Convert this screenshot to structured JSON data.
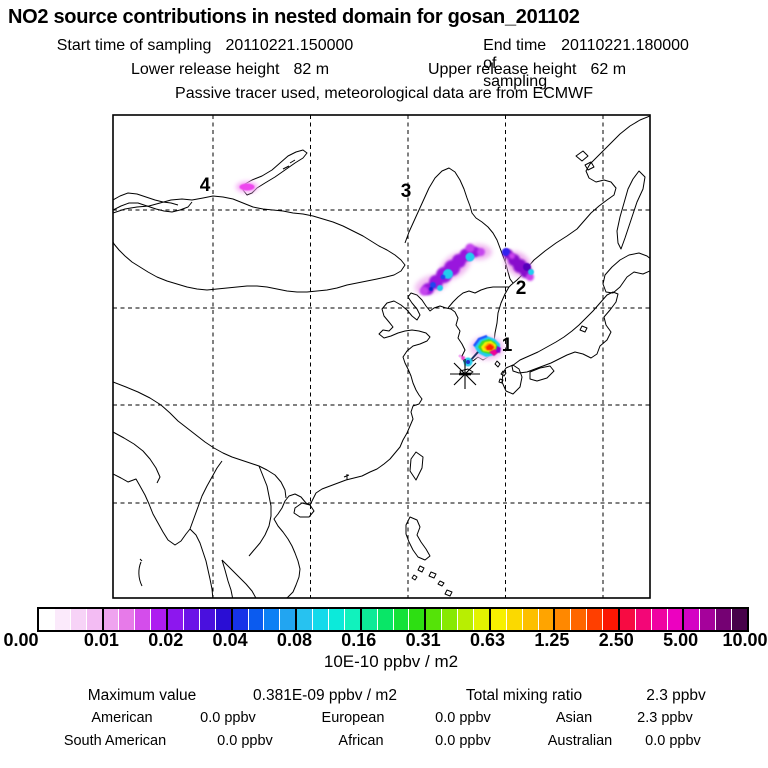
{
  "header": {
    "title": "NO2 source contributions in nested domain for gosan_201102",
    "sampling": {
      "start_label": "Start time of sampling",
      "start_value": "20110221.150000",
      "end_label": "End time of sampling",
      "end_value": "20110221.180000"
    },
    "release": {
      "lower_label": "Lower release height",
      "lower_value": "82 m",
      "upper_label": "Upper release height",
      "upper_value": "62 m"
    },
    "tracer_note": "Passive tracer used, meteorological data are from ECMWF"
  },
  "map": {
    "markers": [
      {
        "label": "1"
      },
      {
        "label": "2"
      },
      {
        "label": "3"
      },
      {
        "label": "4"
      }
    ],
    "receptor_name": "gosan"
  },
  "colorbar": {
    "tick_labels": [
      "0.00",
      "0.01",
      "0.02",
      "0.04",
      "0.08",
      "0.16",
      "0.31",
      "0.63",
      "1.25",
      "2.50",
      "5.00",
      "10.00"
    ],
    "unit": "10E-10 ppbv / m2",
    "cells": [
      "#ffffff",
      "#fbeafb",
      "#f7d3f7",
      "#f3bcf3",
      "#efa3ef",
      "#e77ae9",
      "#d44deb",
      "#ae1cf0",
      "#8d17ee",
      "#6c13e7",
      "#4a10de",
      "#2a0ed4",
      "#1633e8",
      "#0b5bef",
      "#0d80f4",
      "#22a5f1",
      "#27c2f0",
      "#14daeb",
      "#0ceada",
      "#11f2bd",
      "#0dea97",
      "#09e667",
      "#15e238",
      "#2ddf12",
      "#55e308",
      "#87e904",
      "#b8ee02",
      "#e3f300",
      "#f7f000",
      "#fbd900",
      "#fdbf00",
      "#ffa400",
      "#ff8800",
      "#ff6600",
      "#ff3f00",
      "#fb1703",
      "#f70b42",
      "#f30677",
      "#ef03a2",
      "#ec01c0",
      "#d402c4",
      "#a5029b",
      "#750173",
      "#47024a"
    ]
  },
  "stats": {
    "max_label": "Maximum value",
    "max_value": "0.381E-09 ppbv / m2",
    "total_label": "Total mixing ratio",
    "total_value": "2.3 ppbv",
    "contributions": [
      [
        {
          "label": "American",
          "value": "0.0 ppbv"
        },
        {
          "label": "European",
          "value": "0.0 ppbv"
        },
        {
          "label": "Asian",
          "value": "2.3 ppbv"
        }
      ],
      [
        {
          "label": "South American",
          "value": "0.0 ppbv"
        },
        {
          "label": "African",
          "value": "0.0 ppbv"
        },
        {
          "label": "Australian",
          "value": "0.0 ppbv"
        }
      ]
    ]
  },
  "chart_data": {
    "type": "heatmap",
    "subtype": "geographic-dispersion-map",
    "title": "NO2 source contributions in nested domain for gosan_201102",
    "colorbar_levels": [
      0.0,
      0.01,
      0.02,
      0.04,
      0.08,
      0.16,
      0.31,
      0.63,
      1.25,
      2.5,
      5.0,
      10.0
    ],
    "colorbar_unit": "10E-10 ppbv / m2",
    "maximum_value": "0.381E-09 ppbv / m2",
    "total_mixing_ratio": "2.3 ppbv",
    "contributions_ppbv": {
      "American": 0.0,
      "European": 0.0,
      "Asian": 2.3,
      "South American": 0.0,
      "African": 0.0,
      "Australian": 0.0
    },
    "plume_labels_on_map": [
      "1",
      "2",
      "3",
      "4"
    ],
    "grid": "dashed graticule, 5 vertical x 4 horizontal lines",
    "legend_position": "horizontal colorbar below map"
  }
}
